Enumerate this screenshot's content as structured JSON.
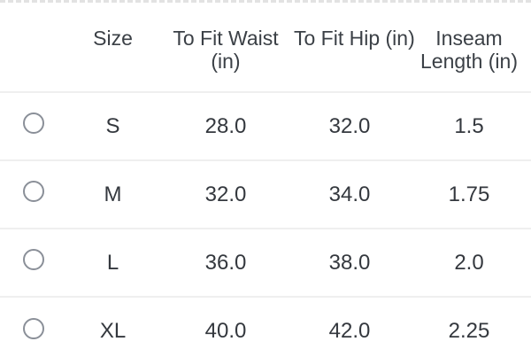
{
  "size_chart": {
    "columns": [
      {
        "key": "select",
        "label": ""
      },
      {
        "key": "size",
        "label": "Size"
      },
      {
        "key": "waist",
        "label": "To Fit Waist (in)"
      },
      {
        "key": "hip",
        "label": "To Fit Hip (in)"
      },
      {
        "key": "inseam",
        "label": "Inseam Length (in)"
      }
    ],
    "rows": [
      {
        "size": "S",
        "to_fit_waist_in": "28.0",
        "to_fit_hip_in": "32.0",
        "inseam_length_in": "1.5",
        "selected": false
      },
      {
        "size": "M",
        "to_fit_waist_in": "32.0",
        "to_fit_hip_in": "34.0",
        "inseam_length_in": "1.75",
        "selected": false
      },
      {
        "size": "L",
        "to_fit_waist_in": "36.0",
        "to_fit_hip_in": "38.0",
        "inseam_length_in": "2.0",
        "selected": false
      },
      {
        "size": "XL",
        "to_fit_waist_in": "40.0",
        "to_fit_hip_in": "42.0",
        "inseam_length_in": "2.25",
        "selected": false
      }
    ]
  },
  "icons": {
    "row_selector": "radio-unchecked-icon"
  },
  "colors": {
    "background": "#ffffff",
    "text": "#3b4046",
    "row_divider": "#efefef",
    "radio_border": "#8a8f98",
    "top_dashed_border": "#e2e2e2"
  }
}
